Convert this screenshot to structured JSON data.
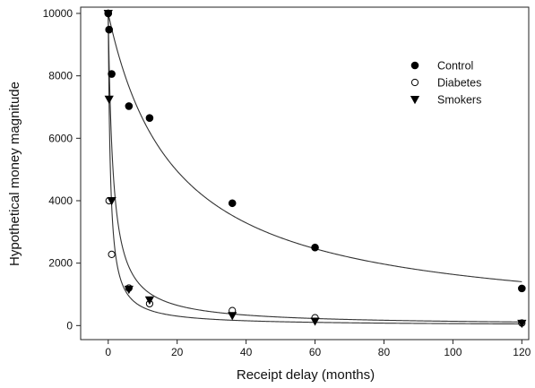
{
  "chart_data": {
    "type": "scatter",
    "title": "",
    "xlabel": "Receipt delay (months)",
    "ylabel": "Hypothetical money magnitude",
    "xlim": [
      -8,
      122
    ],
    "ylim": [
      -450,
      10200
    ],
    "xticks": [
      0,
      20,
      40,
      60,
      80,
      100,
      120
    ],
    "yticks": [
      0,
      2000,
      4000,
      6000,
      8000,
      10000
    ],
    "grid": false,
    "legend_position": "top-right",
    "series": [
      {
        "name": "Control",
        "marker": "filled-circle",
        "points": [
          {
            "x": 0,
            "y": 10000
          },
          {
            "x": 0.25,
            "y": 9480
          },
          {
            "x": 1,
            "y": 8060
          },
          {
            "x": 6,
            "y": 7030
          },
          {
            "x": 12,
            "y": 6650
          },
          {
            "x": 36,
            "y": 3920
          },
          {
            "x": 60,
            "y": 2500
          },
          {
            "x": 120,
            "y": 1190
          }
        ],
        "fit": {
          "model": "hyperbolic",
          "A": 10000,
          "k": 0.051
        }
      },
      {
        "name": "Diabetes",
        "marker": "open-circle",
        "points": [
          {
            "x": 0,
            "y": 10000
          },
          {
            "x": 0.25,
            "y": 4000
          },
          {
            "x": 1,
            "y": 2280
          },
          {
            "x": 6,
            "y": 1200
          },
          {
            "x": 12,
            "y": 700
          },
          {
            "x": 36,
            "y": 480
          },
          {
            "x": 60,
            "y": 250
          },
          {
            "x": 120,
            "y": 80
          }
        ],
        "fit": {
          "model": "hyperbolic",
          "A": 10000,
          "k": 1.6
        }
      },
      {
        "name": "Smokers",
        "marker": "filled-triangle-down",
        "points": [
          {
            "x": 0,
            "y": 10000
          },
          {
            "x": 0.25,
            "y": 7250
          },
          {
            "x": 1,
            "y": 4000
          },
          {
            "x": 6,
            "y": 1160
          },
          {
            "x": 12,
            "y": 820
          },
          {
            "x": 36,
            "y": 320
          },
          {
            "x": 60,
            "y": 140
          },
          {
            "x": 120,
            "y": 70
          }
        ],
        "fit": {
          "model": "hyperbolic",
          "A": 10000,
          "k": 0.72
        }
      }
    ]
  }
}
